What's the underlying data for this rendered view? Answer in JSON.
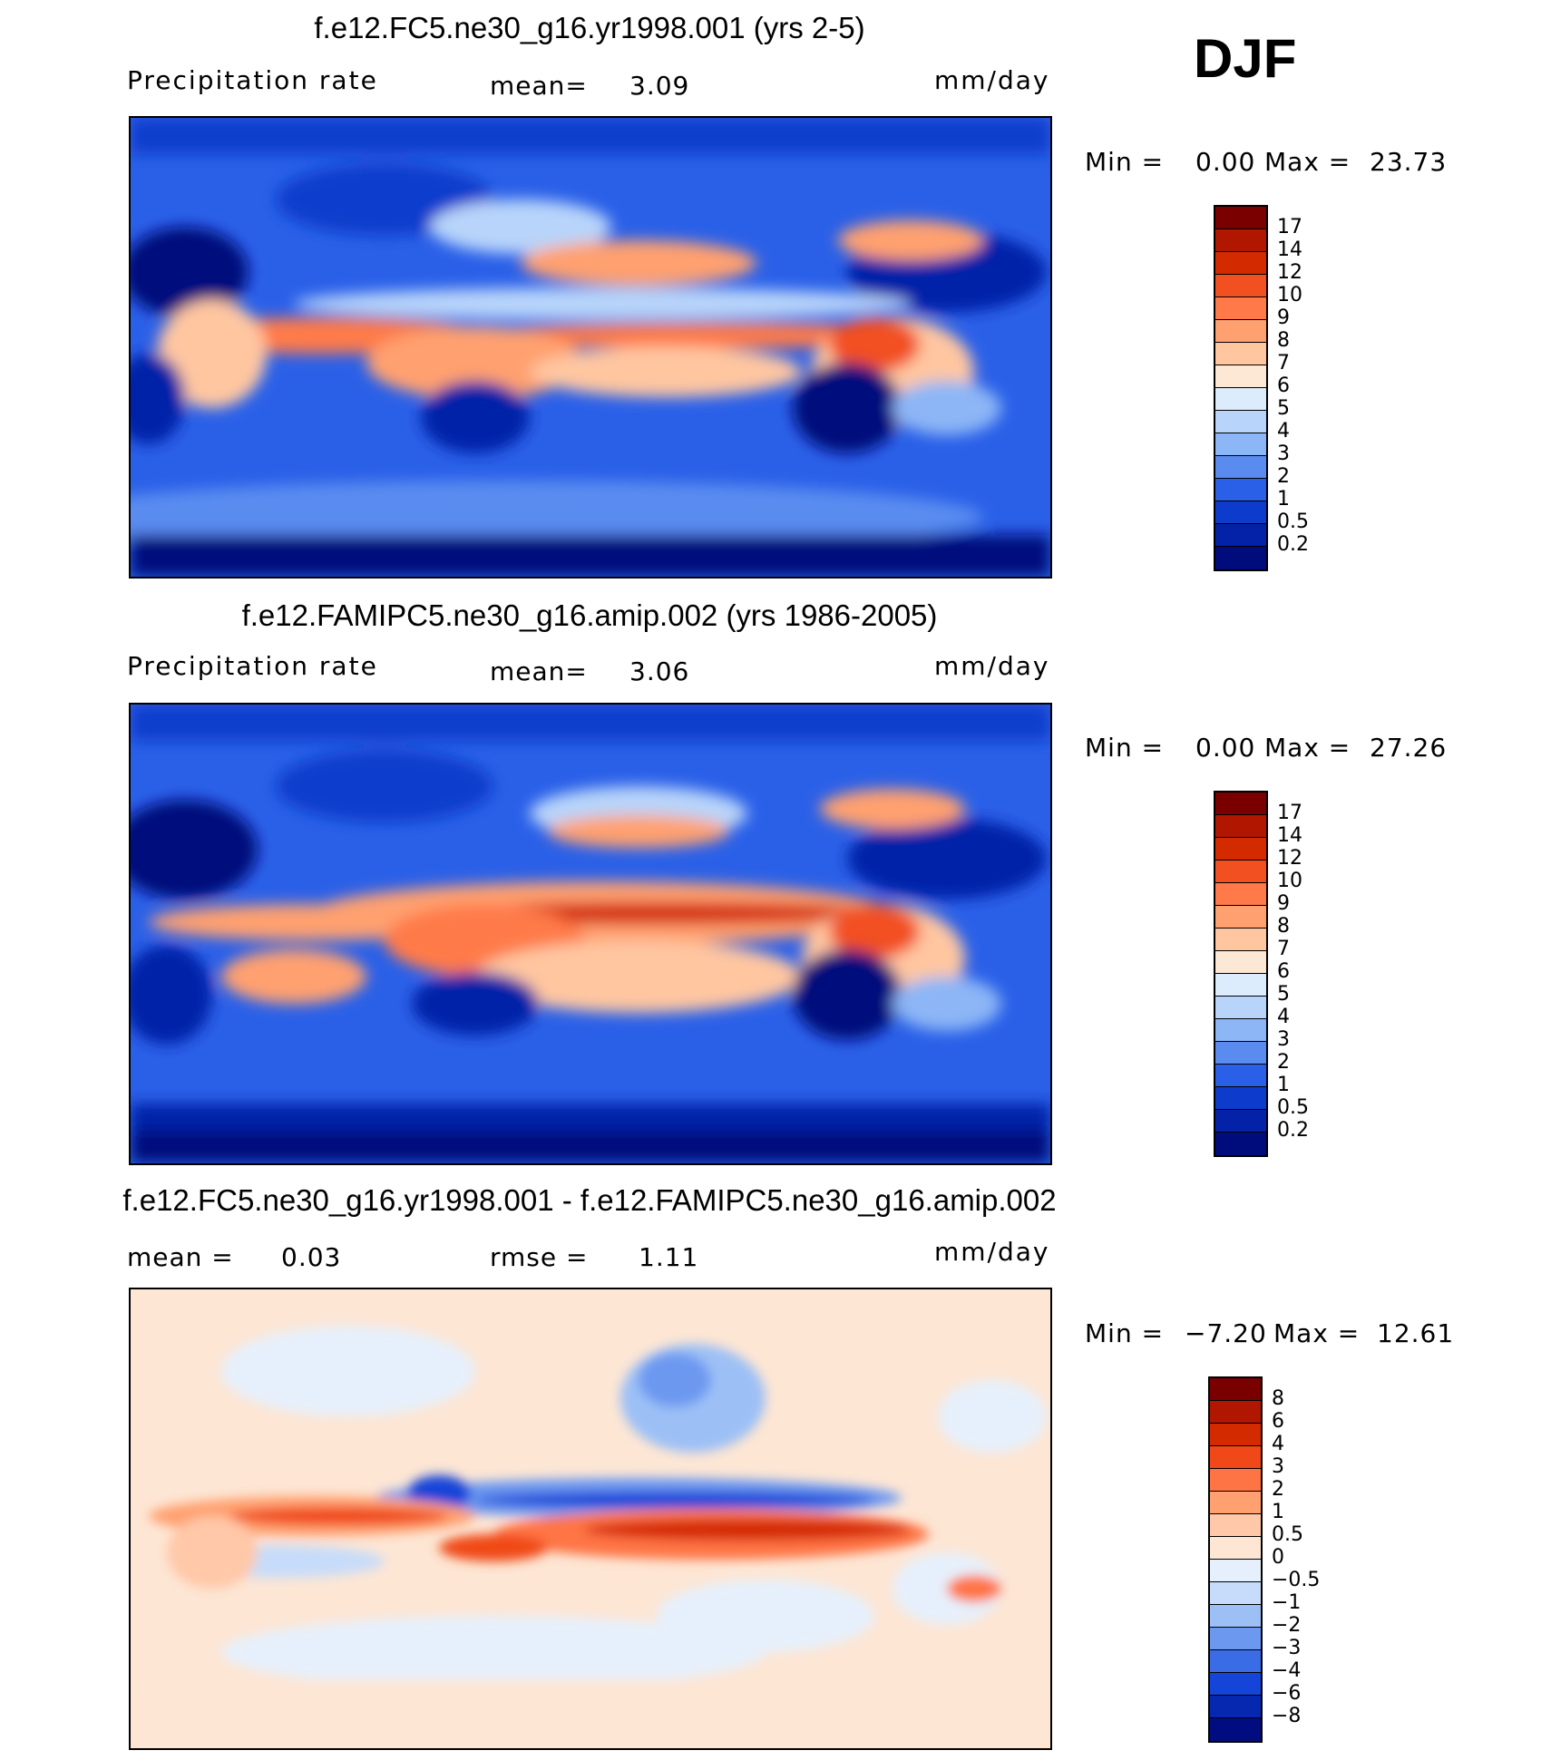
{
  "season": "DJF",
  "panels": [
    {
      "title": "f.e12.FC5.ne30_g16.yr1998.001 (yrs 2-5)",
      "left_label": "Precipitation  rate",
      "mid_label": "mean=",
      "mid_value": "3.09",
      "units": "mm/day",
      "min_label": "Min  =",
      "min_value": "0.00",
      "max_label": "Max  =",
      "max_value": "23.73",
      "colorbar_labels": [
        "17",
        "14",
        "12",
        "10",
        "9",
        "8",
        "7",
        "6",
        "5",
        "4",
        "3",
        "2",
        "1",
        "0.5",
        "0.2"
      ],
      "colorbar_colors": [
        "#7a0000",
        "#b01600",
        "#d42a00",
        "#f25020",
        "#ff7a48",
        "#ffa070",
        "#ffc6a0",
        "#fde8d6",
        "#dcecfc",
        "#b8d4fa",
        "#8cb6f6",
        "#5a8cf0",
        "#2a60e8",
        "#0d3ccc",
        "#0422a8",
        "#000c7c"
      ]
    },
    {
      "title": "f.e12.FAMIPC5.ne30_g16.amip.002 (yrs 1986-2005)",
      "left_label": "Precipitation  rate",
      "mid_label": "mean=",
      "mid_value": "3.06",
      "units": "mm/day",
      "min_label": "Min  =",
      "min_value": "0.00",
      "max_label": "Max  =",
      "max_value": "27.26",
      "colorbar_labels": [
        "17",
        "14",
        "12",
        "10",
        "9",
        "8",
        "7",
        "6",
        "5",
        "4",
        "3",
        "2",
        "1",
        "0.5",
        "0.2"
      ],
      "colorbar_colors": [
        "#7a0000",
        "#b01600",
        "#d42a00",
        "#f25020",
        "#ff7a48",
        "#ffa070",
        "#ffc6a0",
        "#fde8d6",
        "#dcecfc",
        "#b8d4fa",
        "#8cb6f6",
        "#5a8cf0",
        "#2a60e8",
        "#0d3ccc",
        "#0422a8",
        "#000c7c"
      ]
    },
    {
      "title": "f.e12.FC5.ne30_g16.yr1998.001 - f.e12.FAMIPC5.ne30_g16.amip.002",
      "left_label": "mean  =",
      "left_value": "0.03",
      "mid_label": "rmse  =",
      "mid_value": "1.11",
      "units": "mm/day",
      "min_label": "Min  =",
      "min_value": "−7.20",
      "max_label": "Max  =",
      "max_value": "12.61",
      "colorbar_labels": [
        "8",
        "6",
        "4",
        "3",
        "2",
        "1",
        "0.5",
        "0",
        "−0.5",
        "−1",
        "−2",
        "−3",
        "−4",
        "−6",
        "−8"
      ],
      "colorbar_colors": [
        "#7a0000",
        "#b01600",
        "#d42a00",
        "#f04818",
        "#ff7444",
        "#ffa070",
        "#ffc8a8",
        "#fde6d4",
        "#e6f0fc",
        "#c6dcfa",
        "#9cc0f6",
        "#6c98f0",
        "#3a6ce6",
        "#1444d8",
        "#0628b0",
        "#000c80"
      ]
    }
  ]
}
